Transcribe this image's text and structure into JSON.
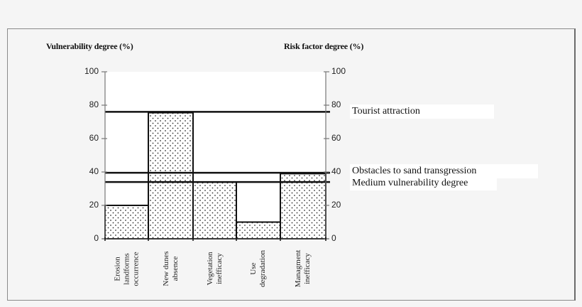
{
  "chart_data": {
    "type": "bar",
    "title": "",
    "ylabel": "Vulnerability degree (%)",
    "y2label": "Risk factor degree (%)",
    "xlabel": "",
    "ylim": [
      0,
      100
    ],
    "y2lim": [
      0,
      100
    ],
    "yticks": [
      0,
      20,
      40,
      60,
      80,
      100
    ],
    "grid": false,
    "categories": [
      "Erosion landforms occurrence",
      "New dunes absence",
      "Vegetation inefficacy",
      "Use degradation",
      "Managment inefficacy"
    ],
    "category_lines": [
      [
        "Erosion",
        "landforms",
        "occurrence"
      ],
      [
        "New dunes",
        "absence"
      ],
      [
        "Vegetation",
        "inefficacy"
      ],
      [
        "Use",
        "degradation"
      ],
      [
        "Managment",
        "inefficacy"
      ]
    ],
    "values": [
      20,
      75.5,
      34,
      10,
      39
    ],
    "bar_pattern": "dotted",
    "reference_lines": [
      {
        "label": "Tourist attraction",
        "value": 76
      },
      {
        "label": "Obstacles to sand transgression",
        "value": 39.5
      },
      {
        "label": "Medium vulnerability degree",
        "value": 34
      }
    ]
  }
}
